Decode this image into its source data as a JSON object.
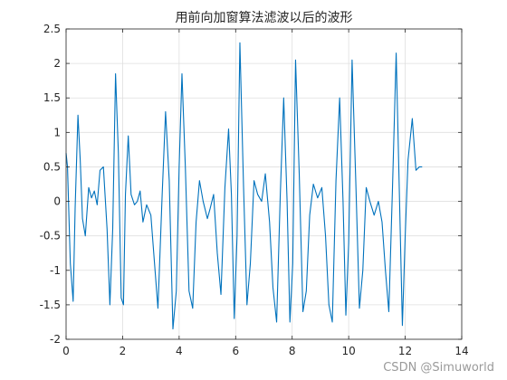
{
  "chart_data": {
    "type": "line",
    "title": "用前向加窗算法滤波以后的波形",
    "xlabel": "",
    "ylabel": "",
    "xlim": [
      0,
      14
    ],
    "ylim": [
      -2,
      2.5
    ],
    "xticks": [
      "0",
      "2",
      "4",
      "6",
      "8",
      "10",
      "12",
      "14"
    ],
    "yticks": [
      "-2",
      "-1.5",
      "-1",
      "-0.5",
      "0",
      "0.5",
      "1",
      "1.5",
      "2",
      "2.5"
    ],
    "grid": true,
    "line_color": "#0072BD",
    "series": [
      {
        "x": [
          0,
          0.05,
          0.15,
          0.25,
          0.32,
          0.42,
          0.5,
          0.58,
          0.68,
          0.8,
          0.9,
          1.0,
          1.1,
          1.2,
          1.32,
          1.45,
          1.55,
          1.65,
          1.75,
          1.85,
          1.95,
          2.03,
          2.1,
          2.2,
          2.3,
          2.42,
          2.52,
          2.62,
          2.72,
          2.85,
          3.0,
          3.12,
          3.25,
          3.4,
          3.52,
          3.65,
          3.78,
          3.9,
          4.0,
          4.1,
          4.22,
          4.35,
          4.48,
          4.6,
          4.72,
          4.85,
          5.0,
          5.1,
          5.22,
          5.35,
          5.48,
          5.62,
          5.75,
          5.85,
          5.95,
          6.05,
          6.15,
          6.28,
          6.4,
          6.52,
          6.65,
          6.78,
          6.92,
          7.05,
          7.2,
          7.32,
          7.45,
          7.58,
          7.7,
          7.82,
          7.92,
          8.02,
          8.12,
          8.25,
          8.38,
          8.5,
          8.62,
          8.75,
          8.9,
          9.05,
          9.18,
          9.3,
          9.42,
          9.55,
          9.68,
          9.8,
          9.9,
          10.0,
          10.12,
          10.25,
          10.38,
          10.5,
          10.62,
          10.75,
          10.9,
          11.05,
          11.18,
          11.3,
          11.42,
          11.55,
          11.68,
          11.8,
          11.9,
          12.0,
          12.1,
          12.25,
          12.38,
          12.5,
          12.6
        ],
        "y": [
          0.7,
          0.5,
          -0.9,
          -1.45,
          -0.1,
          1.25,
          0.6,
          -0.25,
          -0.5,
          0.2,
          0.05,
          0.15,
          -0.05,
          0.45,
          0.5,
          -0.4,
          -1.5,
          -0.4,
          1.85,
          0.7,
          -1.4,
          -1.5,
          0.1,
          0.95,
          0.1,
          -0.05,
          0.0,
          0.15,
          -0.3,
          -0.05,
          -0.2,
          -0.85,
          -1.55,
          0.1,
          1.3,
          0.3,
          -1.85,
          -1.3,
          0.5,
          1.85,
          0.5,
          -1.3,
          -1.55,
          -0.3,
          0.3,
          0.0,
          -0.25,
          -0.1,
          0.1,
          -0.75,
          -1.35,
          0.2,
          1.05,
          0.1,
          -1.7,
          -0.5,
          2.3,
          0.2,
          -1.5,
          -0.9,
          0.3,
          0.1,
          0.0,
          0.4,
          -0.3,
          -1.25,
          -1.75,
          0.1,
          1.5,
          0.0,
          -1.75,
          -0.9,
          2.05,
          0.4,
          -1.6,
          -1.3,
          -0.2,
          0.25,
          0.05,
          0.2,
          -0.5,
          -1.5,
          -1.75,
          0.3,
          1.5,
          0.0,
          -1.65,
          -0.6,
          2.05,
          0.3,
          -1.55,
          -1.0,
          0.2,
          0.0,
          -0.2,
          0.0,
          -0.3,
          -1.0,
          -1.6,
          0.2,
          2.15,
          0.0,
          -1.8,
          -0.5,
          0.6,
          1.2,
          0.45,
          0.5,
          0.5
        ]
      }
    ]
  },
  "watermark": "CSDN @Simuworld"
}
